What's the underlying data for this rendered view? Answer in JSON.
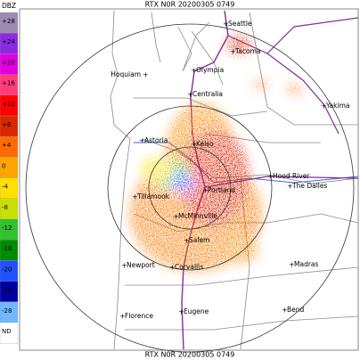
{
  "header": {
    "title": "RTX N0R 20200305 0749"
  },
  "footer": {
    "title": "RTX N0R 20200305 0749"
  },
  "legend": {
    "unit": "DBZ",
    "items": [
      {
        "label": "+28",
        "color": "#9c8cb4"
      },
      {
        "label": "+24",
        "color": "#8a2be2"
      },
      {
        "label": "+20",
        "color": "#e000e0"
      },
      {
        "label": "+16",
        "color": "#ff3c7a"
      },
      {
        "label": "+12",
        "color": "#ff0000"
      },
      {
        "label": "+8",
        "color": "#d82800"
      },
      {
        "label": "+4",
        "color": "#ff6a00"
      },
      {
        "label": "0",
        "color": "#ffa500"
      },
      {
        "label": "-4",
        "color": "#ffe000"
      },
      {
        "label": "-8",
        "color": "#c8e000"
      },
      {
        "label": "-12",
        "color": "#30c030"
      },
      {
        "label": "-16",
        "color": "#008c00"
      },
      {
        "label": "-20",
        "color": "#2050ff"
      },
      {
        "label": "-24",
        "color": "#0000a0"
      },
      {
        "label": "-28",
        "color": "#70b8ff"
      },
      {
        "label": "ND",
        "color": "#ffffff"
      }
    ]
  },
  "cities": [
    "Seattle",
    "Tacoma",
    "Olympia",
    "Hoquiam",
    "Yakima",
    "Centralia",
    "Astoria",
    "Kelso",
    "Hood River",
    "The Dalles",
    "Tillamook",
    "Portland",
    "McMinnville",
    "Salem",
    "Newport",
    "Corvallis",
    "Madras",
    "Eugene",
    "Bend",
    "Florence"
  ]
}
